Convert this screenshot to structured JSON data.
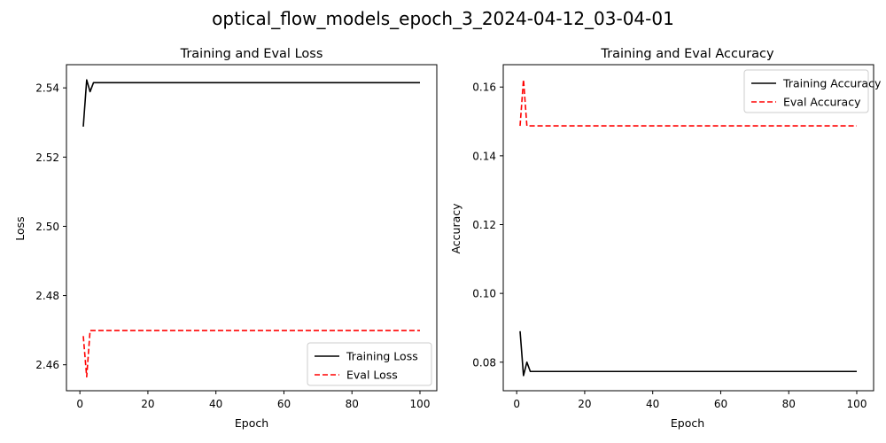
{
  "figure": {
    "title": "optical_flow_models_epoch_3_2024-04-12_03-04-01"
  },
  "chart_data": [
    {
      "type": "line",
      "title": "Training and Eval Loss",
      "xlabel": "Epoch",
      "ylabel": "Loss",
      "xlim": [
        -3.95,
        104.95
      ],
      "ylim": [
        2.4525,
        2.5467
      ],
      "xticks": [
        0,
        20,
        40,
        60,
        80,
        100
      ],
      "yticks": [
        2.46,
        2.48,
        2.5,
        2.52,
        2.54
      ],
      "ytick_labels": [
        "2.46",
        "2.48",
        "2.50",
        "2.52",
        "2.54"
      ],
      "legend": "lower-right",
      "grid": false,
      "series": [
        {
          "name": "Training Loss",
          "color": "#000000",
          "dash": "solid",
          "x": [
            1,
            2,
            3,
            4,
            100
          ],
          "y": [
            2.5288,
            2.5423,
            2.5389,
            2.5415,
            2.5415
          ]
        },
        {
          "name": "Eval Loss",
          "color": "#ff0000",
          "dash": "dashed",
          "x": [
            1,
            2,
            3,
            100
          ],
          "y": [
            2.4683,
            2.4565,
            2.4699,
            2.4699
          ]
        }
      ]
    },
    {
      "type": "line",
      "title": "Training and Eval Accuracy",
      "xlabel": "Epoch",
      "ylabel": "Accuracy",
      "xlim": [
        -3.95,
        104.95
      ],
      "ylim": [
        0.0717,
        0.1665
      ],
      "xticks": [
        0,
        20,
        40,
        60,
        80,
        100
      ],
      "yticks": [
        0.08,
        0.1,
        0.12,
        0.14,
        0.16
      ],
      "ytick_labels": [
        "0.08",
        "0.10",
        "0.12",
        "0.14",
        "0.16"
      ],
      "legend": "top-right",
      "grid": false,
      "series": [
        {
          "name": "Training Accuracy",
          "color": "#000000",
          "dash": "solid",
          "x": [
            1,
            2,
            3,
            4,
            100
          ],
          "y": [
            0.089,
            0.0761,
            0.08,
            0.0773,
            0.0773
          ]
        },
        {
          "name": "Eval Accuracy",
          "color": "#ff0000",
          "dash": "dashed",
          "x": [
            1,
            2,
            3,
            100
          ],
          "y": [
            0.1487,
            0.1622,
            0.1487,
            0.1487
          ]
        }
      ]
    }
  ]
}
